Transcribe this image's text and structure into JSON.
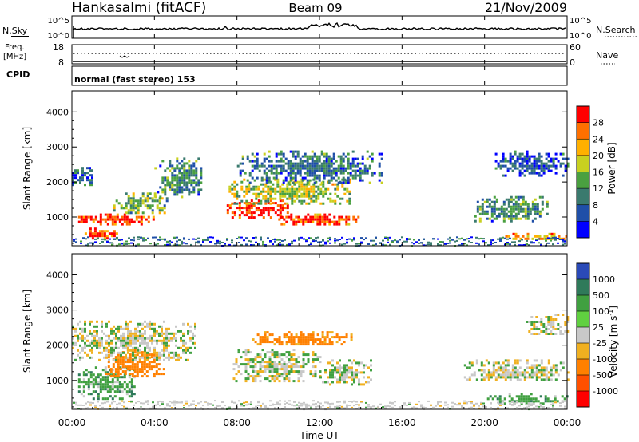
{
  "header": {
    "station": "Hankasalmi (fitACF)",
    "beam": "Beam 09",
    "date": "21/Nov/2009"
  },
  "strips": {
    "nsky_label": "N.Sky",
    "nsearch_label": "N.Search",
    "nsky_ticks": [
      "10^5",
      "10^0"
    ],
    "nsearch_ticks": [
      "10^5",
      "10^0"
    ],
    "freq_label_line1": "Freq.",
    "freq_label_line2": "[MHz]",
    "freq_ticks": [
      "18",
      "8"
    ],
    "nave_label": "Nave",
    "nave_ticks": [
      "60",
      "0"
    ],
    "cpid_label": "CPID",
    "cpid_text": "normal (fast stereo) 153"
  },
  "axes": {
    "ylabel": "Slant Range [km]",
    "xlabel": "Time UT",
    "y_ticks": [
      "1000",
      "2000",
      "3000",
      "4000"
    ],
    "x_ticks": [
      "00:00",
      "04:00",
      "08:00",
      "12:00",
      "16:00",
      "20:00",
      "00:00"
    ]
  },
  "power_scale": {
    "label": "Power [dB]",
    "ticks": [
      "4",
      "8",
      "12",
      "16",
      "20",
      "24",
      "28"
    ],
    "colors": [
      "#0000ff",
      "#1f4fa8",
      "#3a7a6e",
      "#4aa040",
      "#c8d020",
      "#ffb000",
      "#ff7000",
      "#ff0000"
    ]
  },
  "velocity_scale": {
    "label": "Velocity [m s",
    "label_sup": "-1",
    "label_end": "]",
    "ticks": [
      "1000",
      "500",
      "100",
      "25",
      "-25",
      "-100",
      "-500",
      "-1000"
    ],
    "colors": [
      "#2a4ab8",
      "#2f7a5a",
      "#40a040",
      "#60d040",
      "#c8c8c8",
      "#f0b020",
      "#ff8000",
      "#ff5000",
      "#ff0000"
    ]
  },
  "chart_data": [
    {
      "type": "heatmap",
      "title": "Power",
      "x_range_hours": [
        0,
        24
      ],
      "y_range_km": [
        180,
        4600
      ],
      "colorbar_label": "Power [dB]",
      "colorbar_range": [
        0,
        32
      ],
      "regions": [
        {
          "t": [
            0.3,
            4.0
          ],
          "r": [
            800,
            1100
          ],
          "value": 29
        },
        {
          "t": [
            0.5,
            2.2
          ],
          "r": [
            400,
            700
          ],
          "value": 27
        },
        {
          "t": [
            0,
            1.0
          ],
          "r": [
            1900,
            2500
          ],
          "value": 7
        },
        {
          "t": [
            2.0,
            4.6
          ],
          "r": [
            1100,
            1700
          ],
          "value": 14
        },
        {
          "t": [
            4.0,
            6.3
          ],
          "r": [
            1600,
            2700
          ],
          "value": 11
        },
        {
          "t": [
            7.5,
            10.5
          ],
          "r": [
            1000,
            1500
          ],
          "value": 30
        },
        {
          "t": [
            10.0,
            14.0
          ],
          "r": [
            800,
            1100
          ],
          "value": 28
        },
        {
          "t": [
            7.6,
            13.5
          ],
          "r": [
            1400,
            2100
          ],
          "value": 17
        },
        {
          "t": [
            8.0,
            15.0
          ],
          "r": [
            2000,
            2900
          ],
          "value": 9
        },
        {
          "t": [
            19.5,
            23.0
          ],
          "r": [
            900,
            1600
          ],
          "value": 12
        },
        {
          "t": [
            20.5,
            24.0
          ],
          "r": [
            2200,
            2900
          ],
          "value": 6
        },
        {
          "t": [
            21.0,
            24.0
          ],
          "r": [
            350,
            550
          ],
          "value": 22
        }
      ]
    },
    {
      "type": "heatmap",
      "title": "Velocity",
      "x_range_hours": [
        0,
        24
      ],
      "y_range_km": [
        180,
        4600
      ],
      "colorbar_label": "Velocity [m s-1]",
      "regions": [
        {
          "t": [
            0.3,
            3.0
          ],
          "r": [
            500,
            1400
          ],
          "value": 60
        },
        {
          "t": [
            1.5,
            4.5
          ],
          "r": [
            1100,
            1900
          ],
          "value": -200
        },
        {
          "t": [
            0,
            6.0
          ],
          "r": [
            1600,
            2700
          ],
          "value": 0
        },
        {
          "t": [
            7.8,
            12.0
          ],
          "r": [
            1000,
            1900
          ],
          "value": 5
        },
        {
          "t": [
            8.5,
            13.5
          ],
          "r": [
            2000,
            2400
          ],
          "value": -150
        },
        {
          "t": [
            12.0,
            14.5
          ],
          "r": [
            900,
            1600
          ],
          "value": 10
        },
        {
          "t": [
            19.0,
            24.0
          ],
          "r": [
            1000,
            1600
          ],
          "value": 0
        },
        {
          "t": [
            20.0,
            24.0
          ],
          "r": [
            350,
            650
          ],
          "value": 80
        },
        {
          "t": [
            22.0,
            24.0
          ],
          "r": [
            2300,
            2900
          ],
          "value": 0
        }
      ]
    }
  ]
}
